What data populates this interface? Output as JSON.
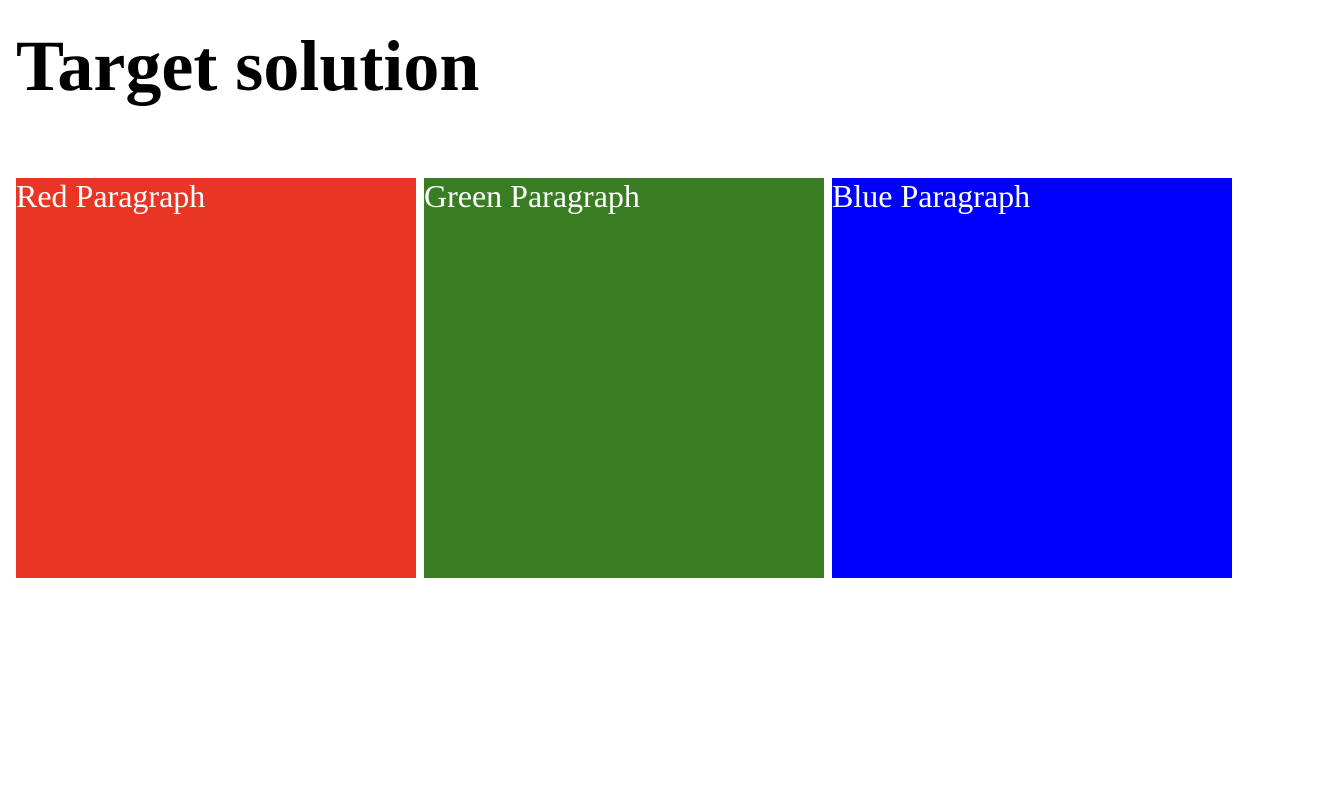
{
  "page": {
    "title": "Target solution"
  },
  "paragraphs": [
    {
      "label": "Red Paragraph",
      "color": "#e83524"
    },
    {
      "label": "Green Paragraph",
      "color": "#387d22"
    },
    {
      "label": "Blue Paragraph",
      "color": "#0000ff"
    }
  ]
}
